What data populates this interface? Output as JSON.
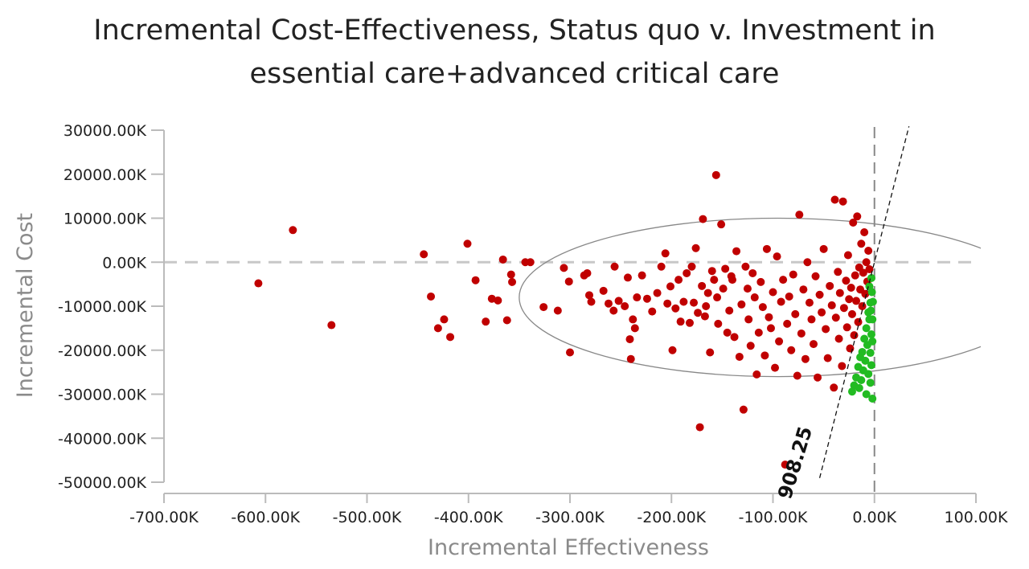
{
  "chart_data": {
    "type": "scatter",
    "title": "Incremental Cost-Effectiveness, Status quo v. Investment in",
    "subtitle": "essential care+advanced critical care",
    "xlabel": "Incremental Effectiveness",
    "ylabel": "Incremental Cost",
    "xlim": [
      -700000,
      100000
    ],
    "ylim": [
      -50000000,
      30000000
    ],
    "x_ticks": [
      -700000,
      -600000,
      -500000,
      -400000,
      -300000,
      -200000,
      -100000,
      0,
      100000
    ],
    "x_tick_labels": [
      "-700.00K",
      "-600.00K",
      "-500.00K",
      "-400.00K",
      "-300.00K",
      "-200.00K",
      "-100.00K",
      "0.00K",
      "100.00K"
    ],
    "y_ticks": [
      30000000,
      20000000,
      10000000,
      0,
      -10000000,
      -20000000,
      -30000000,
      -40000000,
      -50000000
    ],
    "y_tick_labels": [
      "30000.00K",
      "20000.00K",
      "10000.00K",
      "0.00K",
      "-10000.00K",
      "-20000.00K",
      "-30000.00K",
      "-40000.00K",
      "-50000.00K"
    ],
    "wtp_line_label": "908.25",
    "wtp_slope": 908.25,
    "confidence_ellipse": {
      "cx": -95000,
      "cy": -8000000,
      "rx": 255000,
      "ry": 18000000
    },
    "colors": {
      "red": "#c00000",
      "green": "#22bb22",
      "axis": "#bbbbbb",
      "ellipse": "#888888"
    },
    "series": [
      {
        "color": "#c00000",
        "points": [
          [
            -607000,
            -4800000
          ],
          [
            -573000,
            7300000
          ],
          [
            -535000,
            -14300000
          ],
          [
            -444000,
            1800000
          ],
          [
            -437000,
            -7800000
          ],
          [
            -430000,
            -15000000
          ],
          [
            -424000,
            -13000000
          ],
          [
            -418000,
            -17000000
          ],
          [
            -401000,
            4200000
          ],
          [
            -393000,
            -4100000
          ],
          [
            -383000,
            -13500000
          ],
          [
            -377000,
            -8300000
          ],
          [
            -371000,
            -8700000
          ],
          [
            -366000,
            600000
          ],
          [
            -362000,
            -13200000
          ],
          [
            -358000,
            -2800000
          ],
          [
            -357000,
            -4500000
          ],
          [
            -344000,
            0
          ],
          [
            -339000,
            0
          ],
          [
            -326000,
            -10200000
          ],
          [
            -312000,
            -11000000
          ],
          [
            -306000,
            -1300000
          ],
          [
            -301000,
            -4400000
          ],
          [
            -300000,
            -20500000
          ],
          [
            -286000,
            -3000000
          ],
          [
            -283000,
            -2500000
          ],
          [
            -281000,
            -7500000
          ],
          [
            -279000,
            -9000000
          ],
          [
            -267000,
            -6500000
          ],
          [
            -262000,
            -9400000
          ],
          [
            -257000,
            -11000000
          ],
          [
            -256000,
            -1000000
          ],
          [
            -252000,
            -8800000
          ],
          [
            -246000,
            -10000000
          ],
          [
            -243000,
            -3500000
          ],
          [
            -241000,
            -17500000
          ],
          [
            -240000,
            -22000000
          ],
          [
            -238000,
            -13000000
          ],
          [
            -236000,
            -15000000
          ],
          [
            -234000,
            -8000000
          ],
          [
            -229000,
            -3000000
          ],
          [
            -224000,
            -8300000
          ],
          [
            -219000,
            -11200000
          ],
          [
            -214000,
            -7000000
          ],
          [
            -210000,
            -1000000
          ],
          [
            -206000,
            2000000
          ],
          [
            -204000,
            -9400000
          ],
          [
            -201000,
            -5500000
          ],
          [
            -199000,
            -20000000
          ],
          [
            -196000,
            -10500000
          ],
          [
            -193000,
            -4000000
          ],
          [
            -191000,
            -13500000
          ],
          [
            -188000,
            -9000000
          ],
          [
            -185000,
            -2500000
          ],
          [
            -182000,
            -13800000
          ],
          [
            -180000,
            -1000000
          ],
          [
            -178000,
            -9200000
          ],
          [
            -176000,
            3200000
          ],
          [
            -174000,
            -11500000
          ],
          [
            -172000,
            -37500000
          ],
          [
            -170000,
            -5400000
          ],
          [
            -169000,
            9800000
          ],
          [
            -167000,
            -12300000
          ],
          [
            -166000,
            -10000000
          ],
          [
            -164000,
            -7000000
          ],
          [
            -162000,
            -20500000
          ],
          [
            -160000,
            -2000000
          ],
          [
            -158000,
            -4000000
          ],
          [
            -156000,
            19800000
          ],
          [
            -155000,
            -8000000
          ],
          [
            -154000,
            -14000000
          ],
          [
            -151000,
            8600000
          ],
          [
            -149000,
            -6000000
          ],
          [
            -147000,
            -1500000
          ],
          [
            -145000,
            -16000000
          ],
          [
            -143000,
            -11000000
          ],
          [
            -141000,
            -3200000
          ],
          [
            -140000,
            -4000000
          ],
          [
            -138000,
            -17000000
          ],
          [
            -136000,
            2500000
          ],
          [
            -133000,
            -21500000
          ],
          [
            -131000,
            -9600000
          ],
          [
            -129000,
            -33500000
          ],
          [
            -127000,
            -1000000
          ],
          [
            -125000,
            -6000000
          ],
          [
            -124000,
            -13000000
          ],
          [
            -122000,
            -19000000
          ],
          [
            -120000,
            -2500000
          ],
          [
            -118000,
            -8000000
          ],
          [
            -116000,
            -25500000
          ],
          [
            -114000,
            -16000000
          ],
          [
            -112000,
            -4500000
          ],
          [
            -110000,
            -10200000
          ],
          [
            -108000,
            -21200000
          ],
          [
            -106000,
            3000000
          ],
          [
            -104000,
            -12500000
          ],
          [
            -102000,
            -15000000
          ],
          [
            -100000,
            -6800000
          ],
          [
            -98000,
            -24000000
          ],
          [
            -96000,
            1300000
          ],
          [
            -94000,
            -18000000
          ],
          [
            -92000,
            -9000000
          ],
          [
            -90000,
            -4000000
          ],
          [
            -88000,
            -46000000
          ],
          [
            -86000,
            -14000000
          ],
          [
            -84000,
            -7800000
          ],
          [
            -82000,
            -20000000
          ],
          [
            -80000,
            -2800000
          ],
          [
            -78000,
            -11800000
          ],
          [
            -76000,
            -25800000
          ],
          [
            -74000,
            10800000
          ],
          [
            -72000,
            -16200000
          ],
          [
            -70000,
            -6200000
          ],
          [
            -68000,
            -22000000
          ],
          [
            -66000,
            0
          ],
          [
            -64000,
            -9200000
          ],
          [
            -62000,
            -13000000
          ],
          [
            -60000,
            -18600000
          ],
          [
            -58000,
            -3200000
          ],
          [
            -56000,
            -26200000
          ],
          [
            -54000,
            -7400000
          ],
          [
            -52000,
            -11400000
          ],
          [
            -50000,
            3000000
          ],
          [
            -48000,
            -15200000
          ],
          [
            -46000,
            -21800000
          ],
          [
            -44000,
            -5400000
          ],
          [
            -42000,
            -9800000
          ],
          [
            -40000,
            -28500000
          ],
          [
            -39000,
            14200000
          ],
          [
            -38000,
            -12600000
          ],
          [
            -36000,
            -2200000
          ],
          [
            -35000,
            -17400000
          ],
          [
            -34000,
            -7000000
          ],
          [
            -32000,
            -23600000
          ],
          [
            -31000,
            13800000
          ],
          [
            -30000,
            -10400000
          ],
          [
            -28000,
            -4200000
          ],
          [
            -27000,
            -14800000
          ],
          [
            -26000,
            1600000
          ],
          [
            -25000,
            -8400000
          ],
          [
            -24000,
            -19600000
          ],
          [
            -23000,
            -5800000
          ],
          [
            -22000,
            -11800000
          ],
          [
            -21000,
            9000000
          ],
          [
            -20000,
            -16600000
          ],
          [
            -19000,
            -3000000
          ],
          [
            -18000,
            -8800000
          ],
          [
            -17000,
            10400000
          ],
          [
            -16000,
            -13600000
          ],
          [
            -15000,
            -1200000
          ],
          [
            -14000,
            -6200000
          ],
          [
            -13000,
            4200000
          ],
          [
            -12000,
            -10000000
          ],
          [
            -11000,
            -2400000
          ],
          [
            -10000,
            6800000
          ],
          [
            -9000,
            -7200000
          ],
          [
            -8000,
            0
          ],
          [
            -7000,
            -4400000
          ],
          [
            -6000,
            2600000
          ],
          [
            -5000,
            -1600000
          ]
        ]
      },
      {
        "color": "#22bb22",
        "points": [
          [
            -3000,
            -3600000
          ],
          [
            -2500,
            -6800000
          ],
          [
            -4000,
            -9200000
          ],
          [
            -6000,
            -11400000
          ],
          [
            -5000,
            -13000000
          ],
          [
            -8000,
            -15000000
          ],
          [
            -3000,
            -16400000
          ],
          [
            -10000,
            -17400000
          ],
          [
            -7000,
            -18800000
          ],
          [
            -12000,
            -20400000
          ],
          [
            -4000,
            -20600000
          ],
          [
            -14000,
            -21600000
          ],
          [
            -9000,
            -22400000
          ],
          [
            -3000,
            -23400000
          ],
          [
            -16000,
            -23800000
          ],
          [
            -11000,
            -24600000
          ],
          [
            -6000,
            -25400000
          ],
          [
            -18000,
            -26200000
          ],
          [
            -13000,
            -26800000
          ],
          [
            -4000,
            -27400000
          ],
          [
            -20000,
            -28000000
          ],
          [
            -15000,
            -28600000
          ],
          [
            -22000,
            -29400000
          ],
          [
            -8000,
            -30000000
          ],
          [
            -2000,
            -31000000
          ],
          [
            -2000,
            -13000000
          ],
          [
            -2000,
            -18000000
          ],
          [
            -1500,
            -9000000
          ],
          [
            -3500,
            -11000000
          ],
          [
            -5000,
            -5500000
          ]
        ]
      }
    ]
  }
}
